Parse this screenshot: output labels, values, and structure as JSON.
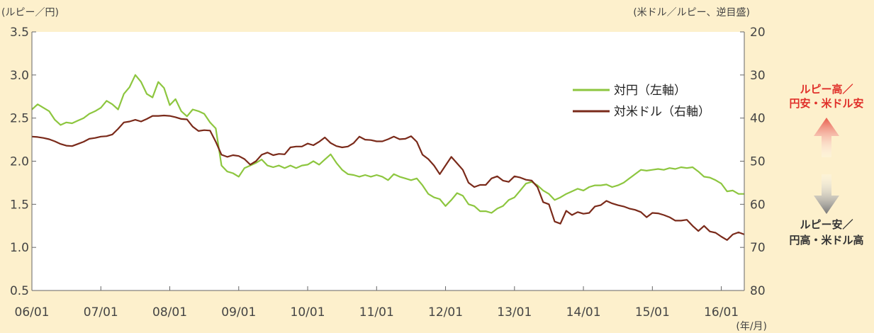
{
  "chart_data": {
    "type": "line",
    "left_unit": "(ルピー／円)",
    "right_unit": "(米ドル／ルピー、逆目盛)",
    "x_unit": "(年/月)",
    "x_tick_labels": [
      "06/01",
      "07/01",
      "08/01",
      "09/01",
      "10/01",
      "11/01",
      "12/01",
      "13/01",
      "14/01",
      "15/01",
      "16/01"
    ],
    "y_left_ticks": [
      "0.5",
      "1.0",
      "1.5",
      "2.0",
      "2.5",
      "3.0",
      "3.5"
    ],
    "y_left_range": [
      0.5,
      3.5
    ],
    "y_right_ticks": [
      "20",
      "30",
      "40",
      "50",
      "60",
      "70",
      "80"
    ],
    "y_right_range": [
      20,
      80
    ],
    "y_right_inverted": true,
    "x_range": [
      "2006-01",
      "2016-05"
    ],
    "grid": false,
    "legend_position": "top-right",
    "series": [
      {
        "name": "対円（左軸）",
        "axis": "left",
        "color": "#8dc63f",
        "points": [
          [
            "2006-01",
            2.6
          ],
          [
            "2006-02",
            2.66
          ],
          [
            "2006-03",
            2.62
          ],
          [
            "2006-04",
            2.58
          ],
          [
            "2006-05",
            2.48
          ],
          [
            "2006-06",
            2.42
          ],
          [
            "2006-07",
            2.45
          ],
          [
            "2006-08",
            2.44
          ],
          [
            "2006-09",
            2.47
          ],
          [
            "2006-10",
            2.5
          ],
          [
            "2006-11",
            2.55
          ],
          [
            "2006-12",
            2.58
          ],
          [
            "2007-01",
            2.62
          ],
          [
            "2007-02",
            2.7
          ],
          [
            "2007-03",
            2.66
          ],
          [
            "2007-04",
            2.6
          ],
          [
            "2007-05",
            2.78
          ],
          [
            "2007-06",
            2.86
          ],
          [
            "2007-07",
            3.0
          ],
          [
            "2007-08",
            2.92
          ],
          [
            "2007-09",
            2.78
          ],
          [
            "2007-10",
            2.74
          ],
          [
            "2007-11",
            2.92
          ],
          [
            "2007-12",
            2.85
          ],
          [
            "2008-01",
            2.65
          ],
          [
            "2008-02",
            2.72
          ],
          [
            "2008-03",
            2.58
          ],
          [
            "2008-04",
            2.52
          ],
          [
            "2008-05",
            2.6
          ],
          [
            "2008-06",
            2.58
          ],
          [
            "2008-07",
            2.55
          ],
          [
            "2008-08",
            2.45
          ],
          [
            "2008-09",
            2.38
          ],
          [
            "2008-10",
            1.95
          ],
          [
            "2008-11",
            1.88
          ],
          [
            "2008-12",
            1.86
          ],
          [
            "2009-01",
            1.82
          ],
          [
            "2009-02",
            1.92
          ],
          [
            "2009-03",
            1.95
          ],
          [
            "2009-04",
            1.98
          ],
          [
            "2009-05",
            2.02
          ],
          [
            "2009-06",
            1.95
          ],
          [
            "2009-07",
            1.93
          ],
          [
            "2009-08",
            1.95
          ],
          [
            "2009-09",
            1.92
          ],
          [
            "2009-10",
            1.95
          ],
          [
            "2009-11",
            1.92
          ],
          [
            "2009-12",
            1.95
          ],
          [
            "2010-01",
            1.96
          ],
          [
            "2010-02",
            2.0
          ],
          [
            "2010-03",
            1.96
          ],
          [
            "2010-04",
            2.02
          ],
          [
            "2010-05",
            2.08
          ],
          [
            "2010-06",
            1.98
          ],
          [
            "2010-07",
            1.9
          ],
          [
            "2010-08",
            1.85
          ],
          [
            "2010-09",
            1.84
          ],
          [
            "2010-10",
            1.82
          ],
          [
            "2010-11",
            1.84
          ],
          [
            "2010-12",
            1.82
          ],
          [
            "2011-01",
            1.84
          ],
          [
            "2011-02",
            1.82
          ],
          [
            "2011-03",
            1.78
          ],
          [
            "2011-04",
            1.85
          ],
          [
            "2011-05",
            1.82
          ],
          [
            "2011-06",
            1.8
          ],
          [
            "2011-07",
            1.78
          ],
          [
            "2011-08",
            1.8
          ],
          [
            "2011-09",
            1.72
          ],
          [
            "2011-10",
            1.62
          ],
          [
            "2011-11",
            1.58
          ],
          [
            "2011-12",
            1.56
          ],
          [
            "2012-01",
            1.48
          ],
          [
            "2012-02",
            1.55
          ],
          [
            "2012-03",
            1.63
          ],
          [
            "2012-04",
            1.6
          ],
          [
            "2012-05",
            1.5
          ],
          [
            "2012-06",
            1.48
          ],
          [
            "2012-07",
            1.42
          ],
          [
            "2012-08",
            1.42
          ],
          [
            "2012-09",
            1.4
          ],
          [
            "2012-10",
            1.45
          ],
          [
            "2012-11",
            1.48
          ],
          [
            "2012-12",
            1.55
          ],
          [
            "2013-01",
            1.58
          ],
          [
            "2013-02",
            1.66
          ],
          [
            "2013-03",
            1.74
          ],
          [
            "2013-04",
            1.76
          ],
          [
            "2013-05",
            1.72
          ],
          [
            "2013-06",
            1.66
          ],
          [
            "2013-07",
            1.62
          ],
          [
            "2013-08",
            1.55
          ],
          [
            "2013-09",
            1.58
          ],
          [
            "2013-10",
            1.62
          ],
          [
            "2013-11",
            1.65
          ],
          [
            "2013-12",
            1.68
          ],
          [
            "2014-01",
            1.66
          ],
          [
            "2014-02",
            1.7
          ],
          [
            "2014-03",
            1.72
          ],
          [
            "2014-04",
            1.72
          ],
          [
            "2014-05",
            1.73
          ],
          [
            "2014-06",
            1.7
          ],
          [
            "2014-07",
            1.72
          ],
          [
            "2014-08",
            1.75
          ],
          [
            "2014-09",
            1.8
          ],
          [
            "2014-10",
            1.85
          ],
          [
            "2014-11",
            1.9
          ],
          [
            "2014-12",
            1.89
          ],
          [
            "2015-01",
            1.9
          ],
          [
            "2015-02",
            1.91
          ],
          [
            "2015-03",
            1.9
          ],
          [
            "2015-04",
            1.92
          ],
          [
            "2015-05",
            1.91
          ],
          [
            "2015-06",
            1.93
          ],
          [
            "2015-07",
            1.92
          ],
          [
            "2015-08",
            1.93
          ],
          [
            "2015-09",
            1.88
          ],
          [
            "2015-10",
            1.82
          ],
          [
            "2015-11",
            1.81
          ],
          [
            "2015-12",
            1.78
          ],
          [
            "2016-01",
            1.74
          ],
          [
            "2016-02",
            1.65
          ],
          [
            "2016-03",
            1.66
          ],
          [
            "2016-04",
            1.62
          ],
          [
            "2016-05",
            1.62
          ]
        ]
      },
      {
        "name": "対米ドル（右軸）",
        "axis": "right",
        "color": "#7a2a1a",
        "points": [
          [
            "2006-01",
            44.3
          ],
          [
            "2006-02",
            44.4
          ],
          [
            "2006-03",
            44.6
          ],
          [
            "2006-04",
            44.9
          ],
          [
            "2006-05",
            45.4
          ],
          [
            "2006-06",
            46.0
          ],
          [
            "2006-07",
            46.4
          ],
          [
            "2006-08",
            46.5
          ],
          [
            "2006-09",
            46.0
          ],
          [
            "2006-10",
            45.5
          ],
          [
            "2006-11",
            44.8
          ],
          [
            "2006-12",
            44.6
          ],
          [
            "2007-01",
            44.3
          ],
          [
            "2007-02",
            44.2
          ],
          [
            "2007-03",
            43.8
          ],
          [
            "2007-04",
            42.5
          ],
          [
            "2007-05",
            41.0
          ],
          [
            "2007-06",
            40.8
          ],
          [
            "2007-07",
            40.4
          ],
          [
            "2007-08",
            40.8
          ],
          [
            "2007-09",
            40.2
          ],
          [
            "2007-10",
            39.5
          ],
          [
            "2007-11",
            39.5
          ],
          [
            "2007-12",
            39.4
          ],
          [
            "2008-01",
            39.5
          ],
          [
            "2008-02",
            39.8
          ],
          [
            "2008-03",
            40.2
          ],
          [
            "2008-04",
            40.3
          ],
          [
            "2008-05",
            42.0
          ],
          [
            "2008-06",
            43.0
          ],
          [
            "2008-07",
            42.8
          ],
          [
            "2008-08",
            42.9
          ],
          [
            "2008-09",
            45.5
          ],
          [
            "2008-10",
            48.5
          ],
          [
            "2008-11",
            49.0
          ],
          [
            "2008-12",
            48.6
          ],
          [
            "2009-01",
            48.8
          ],
          [
            "2009-02",
            49.5
          ],
          [
            "2009-03",
            50.8
          ],
          [
            "2009-04",
            50.0
          ],
          [
            "2009-05",
            48.5
          ],
          [
            "2009-06",
            48.0
          ],
          [
            "2009-07",
            48.6
          ],
          [
            "2009-08",
            48.3
          ],
          [
            "2009-09",
            48.4
          ],
          [
            "2009-10",
            46.8
          ],
          [
            "2009-11",
            46.6
          ],
          [
            "2009-12",
            46.6
          ],
          [
            "2010-01",
            45.9
          ],
          [
            "2010-02",
            46.3
          ],
          [
            "2010-03",
            45.5
          ],
          [
            "2010-04",
            44.5
          ],
          [
            "2010-05",
            45.8
          ],
          [
            "2010-06",
            46.5
          ],
          [
            "2010-07",
            46.8
          ],
          [
            "2010-08",
            46.6
          ],
          [
            "2010-09",
            45.8
          ],
          [
            "2010-10",
            44.3
          ],
          [
            "2010-11",
            45.0
          ],
          [
            "2010-12",
            45.1
          ],
          [
            "2011-01",
            45.4
          ],
          [
            "2011-02",
            45.4
          ],
          [
            "2011-03",
            44.9
          ],
          [
            "2011-04",
            44.3
          ],
          [
            "2011-05",
            44.9
          ],
          [
            "2011-06",
            44.8
          ],
          [
            "2011-07",
            44.2
          ],
          [
            "2011-08",
            45.5
          ],
          [
            "2011-09",
            48.5
          ],
          [
            "2011-10",
            49.5
          ],
          [
            "2011-11",
            51.0
          ],
          [
            "2011-12",
            53.0
          ],
          [
            "2012-01",
            51.0
          ],
          [
            "2012-02",
            49.0
          ],
          [
            "2012-03",
            50.5
          ],
          [
            "2012-04",
            52.0
          ],
          [
            "2012-05",
            55.0
          ],
          [
            "2012-06",
            56.0
          ],
          [
            "2012-07",
            55.5
          ],
          [
            "2012-08",
            55.5
          ],
          [
            "2012-09",
            54.0
          ],
          [
            "2012-10",
            53.5
          ],
          [
            "2012-11",
            54.5
          ],
          [
            "2012-12",
            54.8
          ],
          [
            "2013-01",
            53.5
          ],
          [
            "2013-02",
            53.8
          ],
          [
            "2013-03",
            54.3
          ],
          [
            "2013-04",
            54.5
          ],
          [
            "2013-05",
            56.0
          ],
          [
            "2013-06",
            59.5
          ],
          [
            "2013-07",
            60.0
          ],
          [
            "2013-08",
            64.0
          ],
          [
            "2013-09",
            64.5
          ],
          [
            "2013-10",
            61.5
          ],
          [
            "2013-11",
            62.5
          ],
          [
            "2013-12",
            61.8
          ],
          [
            "2014-01",
            62.2
          ],
          [
            "2014-02",
            62.0
          ],
          [
            "2014-03",
            60.5
          ],
          [
            "2014-04",
            60.2
          ],
          [
            "2014-05",
            59.2
          ],
          [
            "2014-06",
            59.8
          ],
          [
            "2014-07",
            60.2
          ],
          [
            "2014-08",
            60.5
          ],
          [
            "2014-09",
            61.0
          ],
          [
            "2014-10",
            61.3
          ],
          [
            "2014-11",
            61.8
          ],
          [
            "2014-12",
            63.0
          ],
          [
            "2015-01",
            62.0
          ],
          [
            "2015-02",
            62.1
          ],
          [
            "2015-03",
            62.5
          ],
          [
            "2015-04",
            63.0
          ],
          [
            "2015-05",
            63.8
          ],
          [
            "2015-06",
            63.8
          ],
          [
            "2015-07",
            63.6
          ],
          [
            "2015-08",
            65.0
          ],
          [
            "2015-09",
            66.2
          ],
          [
            "2015-10",
            65.0
          ],
          [
            "2015-11",
            66.3
          ],
          [
            "2015-12",
            66.6
          ],
          [
            "2016-01",
            67.5
          ],
          [
            "2016-02",
            68.3
          ],
          [
            "2016-03",
            67.0
          ],
          [
            "2016-04",
            66.5
          ],
          [
            "2016-05",
            67.0
          ]
        ]
      }
    ],
    "annotations": {
      "up_text": [
        "ルピー高／",
        "円安・米ドル安"
      ],
      "down_text": [
        "ルピー安／",
        "円高・米ドル高"
      ],
      "up_color": "#e0302a",
      "down_color": "#333333"
    }
  }
}
